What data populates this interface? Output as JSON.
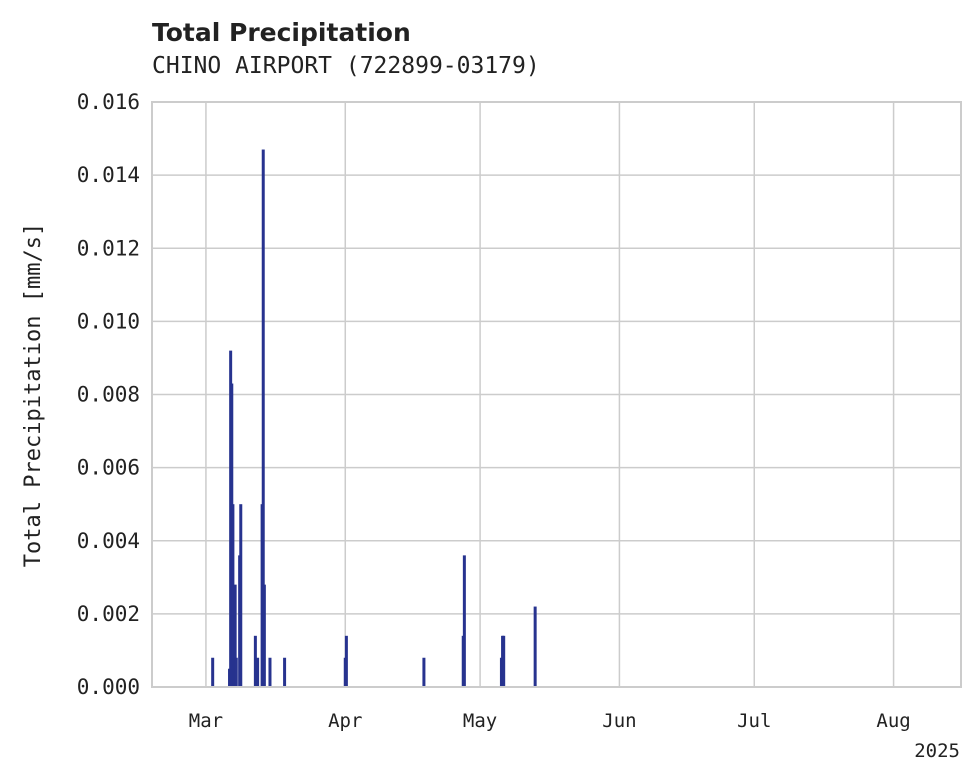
{
  "chart_data": {
    "type": "bar",
    "title": "Total Precipitation",
    "subtitle": "CHINO AIRPORT (722899-03179)",
    "xlabel": "",
    "ylabel": "Total Precipitation [mm/s]",
    "x_offset_label": "2025",
    "xlim": [
      "2025-02-17",
      "2025-08-16"
    ],
    "ylim": [
      0,
      0.016
    ],
    "x_ticks": [
      {
        "date": "2025-03-01",
        "label": "Mar"
      },
      {
        "date": "2025-04-01",
        "label": "Apr"
      },
      {
        "date": "2025-05-01",
        "label": "May"
      },
      {
        "date": "2025-06-01",
        "label": "Jun"
      },
      {
        "date": "2025-07-01",
        "label": "Jul"
      },
      {
        "date": "2025-08-01",
        "label": "Aug"
      }
    ],
    "y_ticks": [
      "0.000",
      "0.002",
      "0.004",
      "0.006",
      "0.008",
      "0.010",
      "0.012",
      "0.014",
      "0.016"
    ],
    "grid": true,
    "bar_color": "#27338f",
    "series": [
      {
        "values": [
          {
            "x": "2025-03-02 12:00",
            "y": 0.0008
          },
          {
            "x": "2025-03-06 06:00",
            "y": 0.0005
          },
          {
            "x": "2025-03-06 12:00",
            "y": 0.0092
          },
          {
            "x": "2025-03-06 18:00",
            "y": 0.0083
          },
          {
            "x": "2025-03-07 00:00",
            "y": 0.005
          },
          {
            "x": "2025-03-07 06:00",
            "y": 0.0008
          },
          {
            "x": "2025-03-07 12:00",
            "y": 0.0028
          },
          {
            "x": "2025-03-07 18:00",
            "y": 0.0008
          },
          {
            "x": "2025-03-08 12:00",
            "y": 0.0036
          },
          {
            "x": "2025-03-08 18:00",
            "y": 0.005
          },
          {
            "x": "2025-03-12 00:00",
            "y": 0.0014
          },
          {
            "x": "2025-03-12 12:00",
            "y": 0.0008
          },
          {
            "x": "2025-03-13 12:00",
            "y": 0.005
          },
          {
            "x": "2025-03-13 18:00",
            "y": 0.0147
          },
          {
            "x": "2025-03-14 00:00",
            "y": 0.0028
          },
          {
            "x": "2025-03-15 06:00",
            "y": 0.0008
          },
          {
            "x": "2025-03-18 12:00",
            "y": 0.0008
          },
          {
            "x": "2025-04-01 00:00",
            "y": 0.0008
          },
          {
            "x": "2025-04-01 06:00",
            "y": 0.0014
          },
          {
            "x": "2025-04-18 12:00",
            "y": 0.0008
          },
          {
            "x": "2025-04-27 06:00",
            "y": 0.0014
          },
          {
            "x": "2025-04-27 12:00",
            "y": 0.0036
          },
          {
            "x": "2025-05-05 18:00",
            "y": 0.0008
          },
          {
            "x": "2025-05-06 00:00",
            "y": 0.0014
          },
          {
            "x": "2025-05-06 06:00",
            "y": 0.0014
          },
          {
            "x": "2025-05-13 06:00",
            "y": 0.0022
          }
        ]
      }
    ]
  }
}
